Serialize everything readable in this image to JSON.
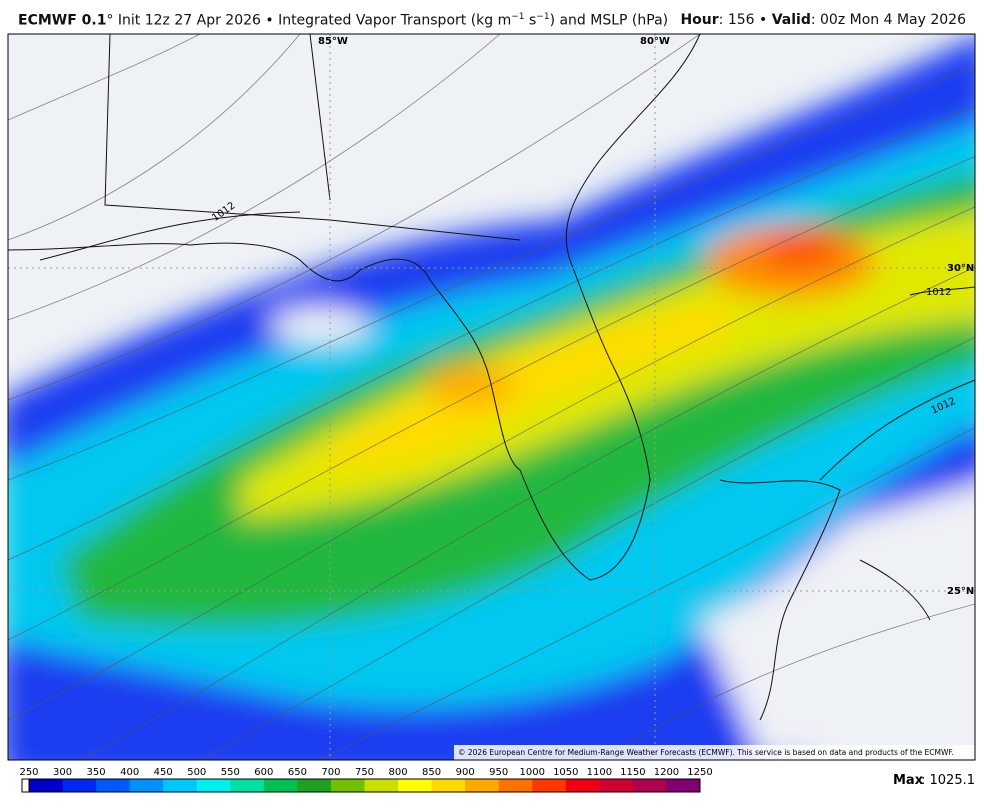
{
  "header": {
    "model": "ECMWF 0.1",
    "init": "° Init 12z 27 Apr 2026 • Integrated Vapor Transport (kg m",
    "exp1": "−1",
    "mid": " s",
    "exp2": "−1",
    "tail": ") and MSLP (hPa)",
    "hour_label": "Hour",
    "hour_value": ": 156 • ",
    "valid_label": "Valid",
    "valid_value": ": 00z Mon 4 May 2026"
  },
  "map": {
    "lon_labels": [
      "85°W",
      "80°W"
    ],
    "lat_labels": [
      "30°N",
      "25°N"
    ],
    "isobar_labels": [
      1012,
      1012,
      1012
    ],
    "credit": "© 2026 European Centre for Medium-Range Weather Forecasts (ECMWF). This service is based on data and products of the ECMWF."
  },
  "colorbar": {
    "ticks": [
      250,
      300,
      350,
      400,
      450,
      500,
      550,
      600,
      650,
      700,
      750,
      800,
      850,
      900,
      950,
      1000,
      1050,
      1100,
      1150,
      1200,
      1250
    ],
    "colors": [
      "#0000c8",
      "#0028f0",
      "#0058ff",
      "#0090ff",
      "#00c8ff",
      "#00f0f0",
      "#00e0a0",
      "#00c050",
      "#20a020",
      "#70c000",
      "#c8e000",
      "#ffff00",
      "#ffd800",
      "#ffa800",
      "#ff7000",
      "#ff3800",
      "#f00010",
      "#d00030",
      "#b00050",
      "#800070"
    ],
    "max_label": "Max",
    "max_value": ": 1025.1"
  }
}
